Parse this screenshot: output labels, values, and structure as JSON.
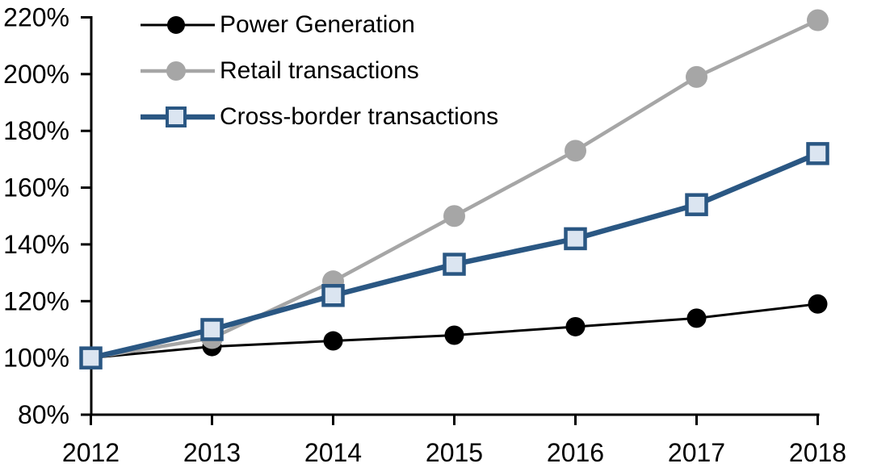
{
  "chart_data": {
    "type": "line",
    "title": "",
    "xlabel": "",
    "ylabel": "",
    "x": [
      "2012",
      "2013",
      "2014",
      "2015",
      "2016",
      "2017",
      "2018"
    ],
    "series": [
      {
        "name": "Power Generation",
        "color": "#000000",
        "marker": "circle",
        "marker_fill": "#000000",
        "marker_stroke": "#000000",
        "values": [
          100,
          104,
          106,
          108,
          111,
          114,
          119
        ]
      },
      {
        "name": "Retail transactions",
        "color": "#A6A6A6",
        "marker": "circle",
        "marker_fill": "#A6A6A6",
        "marker_stroke": "#A6A6A6",
        "values": [
          100,
          107,
          127,
          150,
          173,
          199,
          219
        ]
      },
      {
        "name": "Cross-border transactions",
        "color": "#2A5783",
        "marker": "square",
        "marker_fill": "#DBE5F1",
        "marker_stroke": "#2A5783",
        "values": [
          100,
          110,
          122,
          133,
          142,
          154,
          172
        ]
      }
    ],
    "ylim": [
      80,
      220
    ],
    "ytick_step": 20,
    "ytick_format": "percent",
    "grid": false,
    "legend_position": "top-left-inside"
  },
  "axes": {
    "y_tick_labels": [
      "220%",
      "200%",
      "180%",
      "160%",
      "140%",
      "120%",
      "100%",
      "80%"
    ],
    "x_tick_labels": [
      "2012",
      "2013",
      "2014",
      "2015",
      "2016",
      "2017",
      "2018"
    ],
    "axis_color": "#000000"
  },
  "colors": {
    "background": "#FFFFFF",
    "accent_blue": "#2A5783",
    "accent_blue_light": "#DBE5F1",
    "gray": "#A6A6A6",
    "black": "#000000"
  }
}
